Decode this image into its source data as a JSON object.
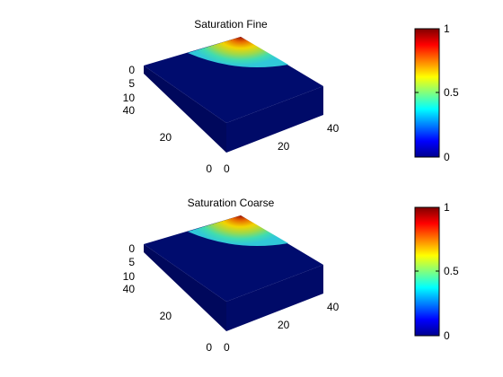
{
  "chart_data": [
    {
      "type": "heatmap",
      "title": "Saturation Fine",
      "x_ticks": [
        "0",
        "20",
        "40"
      ],
      "y_ticks": [
        "0",
        "20",
        "40"
      ],
      "z_ticks": [
        "0",
        "5",
        "10"
      ],
      "colorbar": {
        "ticks": [
          "0",
          "0.5",
          "1"
        ],
        "range": [
          0,
          1
        ],
        "colormap": "jet"
      },
      "saturation_front": {
        "source_value": 1,
        "background_value": 0
      }
    },
    {
      "type": "heatmap",
      "title": "Saturation Coarse",
      "x_ticks": [
        "0",
        "20",
        "40"
      ],
      "y_ticks": [
        "0",
        "20",
        "40"
      ],
      "z_ticks": [
        "0",
        "5",
        "10"
      ],
      "colorbar": {
        "ticks": [
          "0",
          "0.5",
          "1"
        ],
        "range": [
          0,
          1
        ],
        "colormap": "jet"
      },
      "saturation_front": {
        "source_value": 1,
        "background_value": 0
      }
    }
  ]
}
